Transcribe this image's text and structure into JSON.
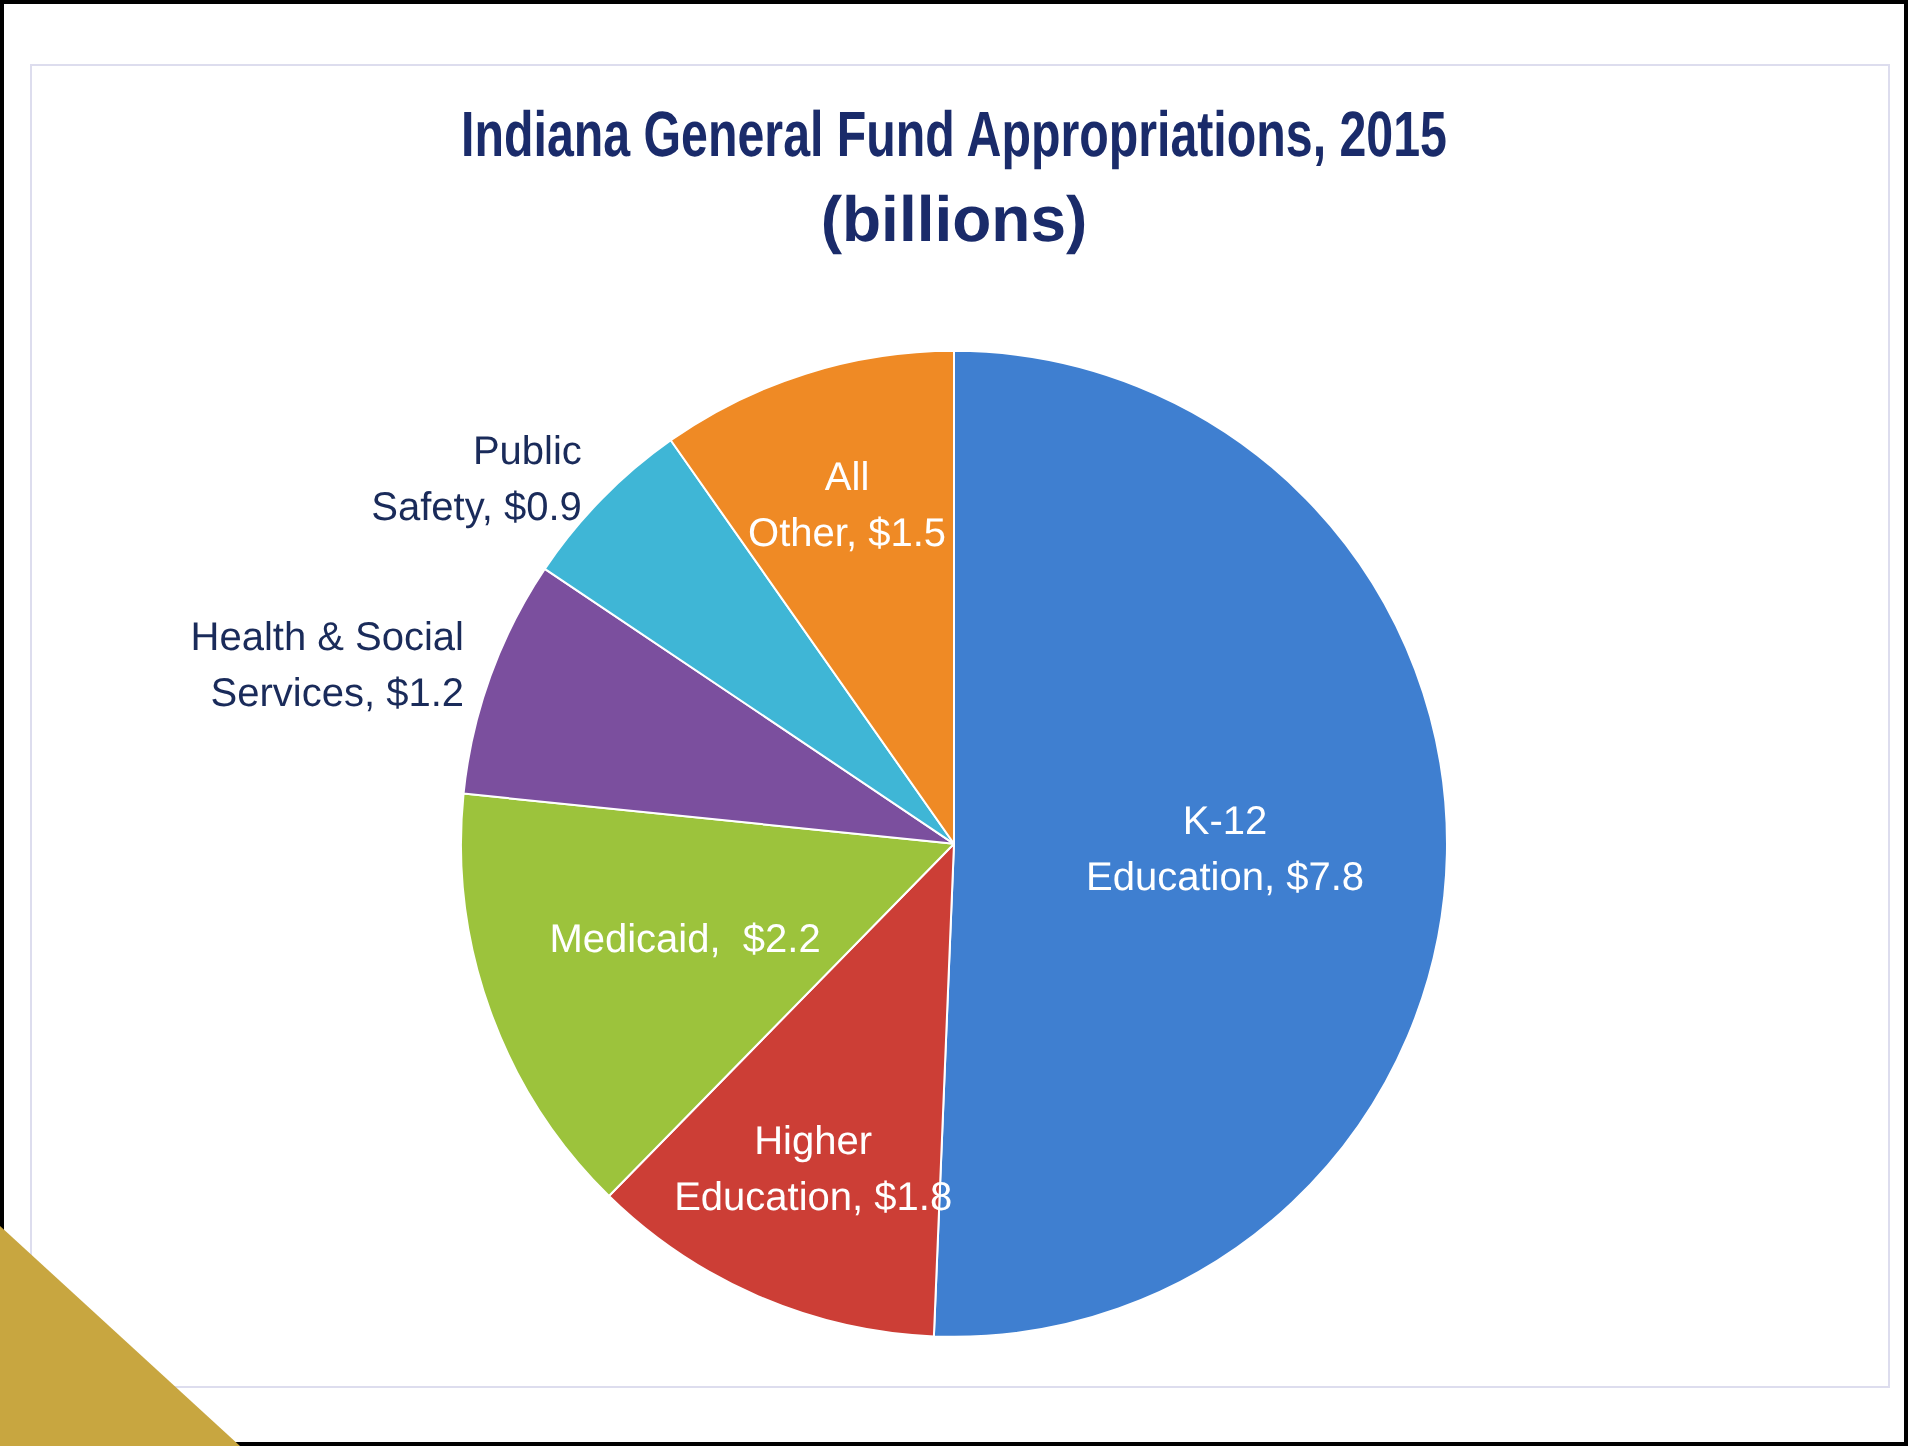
{
  "chart_data": {
    "type": "pie",
    "title": "Indiana General Fund Appropriations, 2015",
    "subtitle": "(billions)",
    "categories": [
      "K-12 Education",
      "Higher Education",
      "Medicaid",
      "Health & Social Services",
      "Public Safety",
      "All Other"
    ],
    "values": [
      7.8,
      1.8,
      2.2,
      1.2,
      0.9,
      1.5
    ],
    "value_labels": [
      "$7.8",
      "$1.8",
      "$2.2",
      "$1.2",
      "$0.9",
      "$1.5"
    ],
    "colors": [
      "#3f7fd0",
      "#cc3e36",
      "#9cc33c",
      "#7b4f9e",
      "#3fb6d6",
      "#ef8a25"
    ],
    "legend": false
  }
}
